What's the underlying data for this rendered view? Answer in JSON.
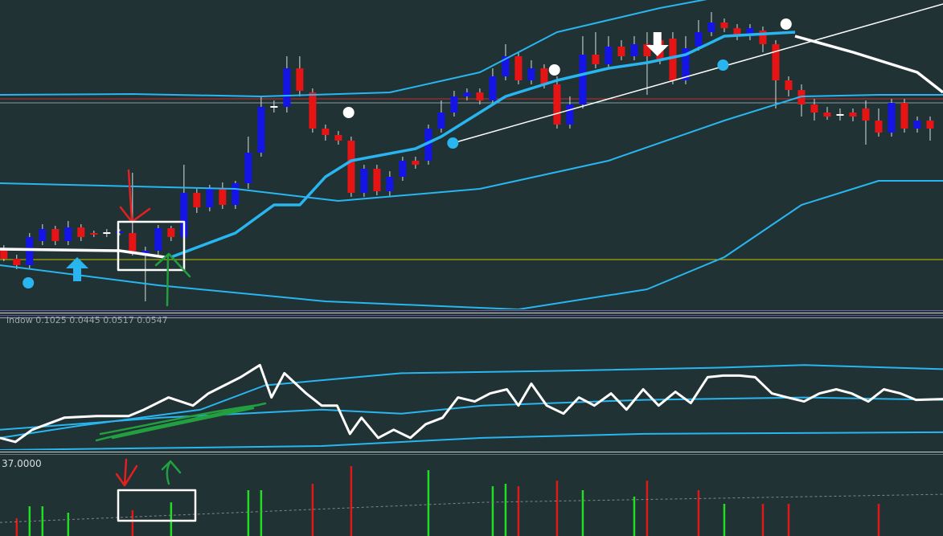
{
  "chart_data": [
    {
      "type": "candlestick",
      "xlim": [
        -0.3,
        73
      ],
      "ylim": [
        0,
        385
      ],
      "up_color": "#1414e6",
      "down_color": "#e61414",
      "doji_color": "#ffffff",
      "open": [
        75,
        63,
        55,
        85,
        100,
        85,
        102,
        95,
        95,
        95,
        95,
        67,
        73,
        101,
        90,
        145,
        127,
        150,
        130,
        157,
        195,
        252,
        252,
        300,
        270,
        225,
        217,
        210,
        145,
        175,
        147,
        165,
        185,
        185,
        225,
        245,
        265,
        270,
        260,
        290,
        315,
        285,
        300,
        280,
        230,
        255,
        317,
        305,
        327,
        315,
        330,
        335,
        337,
        285,
        327,
        345,
        357,
        350,
        340,
        347,
        330,
        285,
        273,
        255,
        245,
        242,
        245,
        250,
        235,
        220,
        257,
        225,
        235
      ],
      "high": [
        80,
        68,
        95,
        106,
        104,
        110,
        106,
        98,
        100,
        100,
        170,
        78,
        105,
        104,
        180,
        150,
        155,
        158,
        160,
        215,
        265,
        260,
        315,
        315,
        275,
        230,
        222,
        215,
        180,
        180,
        172,
        190,
        190,
        230,
        260,
        272,
        275,
        275,
        300,
        330,
        320,
        310,
        305,
        290,
        265,
        340,
        345,
        340,
        335,
        340,
        345,
        340,
        345,
        340,
        360,
        370,
        362,
        355,
        355,
        352,
        335,
        290,
        280,
        262,
        252,
        250,
        250,
        260,
        250,
        262,
        262,
        240,
        240
      ],
      "low": [
        60,
        50,
        50,
        80,
        80,
        80,
        85,
        90,
        90,
        92,
        67,
        10,
        68,
        85,
        87,
        120,
        122,
        125,
        125,
        150,
        190,
        245,
        245,
        265,
        220,
        210,
        205,
        140,
        140,
        142,
        140,
        160,
        175,
        180,
        220,
        240,
        260,
        255,
        255,
        285,
        280,
        280,
        275,
        225,
        225,
        250,
        300,
        300,
        310,
        310,
        267,
        305,
        280,
        280,
        322,
        340,
        345,
        335,
        335,
        320,
        250,
        265,
        240,
        235,
        236,
        235,
        234,
        205,
        215,
        215,
        220,
        220,
        210
      ],
      "close": [
        63,
        55,
        90,
        100,
        85,
        102,
        90,
        93,
        95,
        97,
        69,
        73,
        101,
        90,
        145,
        127,
        150,
        130,
        157,
        195,
        252,
        252,
        300,
        272,
        225,
        217,
        210,
        145,
        175,
        147,
        165,
        185,
        180,
        225,
        245,
        265,
        270,
        260,
        290,
        315,
        285,
        300,
        280,
        230,
        255,
        317,
        305,
        327,
        315,
        330,
        315,
        310,
        285,
        325,
        345,
        357,
        350,
        340,
        350,
        330,
        285,
        273,
        255,
        245,
        240,
        242,
        240,
        235,
        220,
        257,
        225,
        235,
        225
      ],
      "hlines": [
        {
          "value": 62,
          "color": "#c8c000"
        },
        {
          "value": 262,
          "color": "#c03030"
        },
        {
          "value": 257,
          "color": "#8a9aa0"
        }
      ],
      "series": [
        {
          "color": "#29b6f0",
          "width": 2,
          "x": [
            -0.3,
            10,
            20,
            30,
            37,
            43,
            51,
            56
          ],
          "values": [
            267,
            268,
            265,
            270,
            295,
            345,
            375,
            390
          ]
        },
        {
          "color": "#29b6f0",
          "width": 2,
          "x": [
            -0.3,
            18,
            26,
            37,
            47,
            56,
            62,
            68,
            73
          ],
          "values": [
            157,
            150,
            135,
            150,
            185,
            235,
            265,
            267,
            267
          ]
        },
        {
          "color": "#29b6f0",
          "width": 2,
          "x": [
            -0.3,
            12,
            25,
            40,
            50,
            56,
            62,
            68,
            73
          ],
          "values": [
            55,
            30,
            10,
            0,
            25,
            65,
            130,
            160,
            160
          ]
        },
        {
          "color": "#29b6f0",
          "width": 3.5,
          "x": [
            13,
            18,
            21,
            23,
            25,
            27,
            32,
            34,
            36,
            39,
            43,
            47,
            50,
            53,
            56,
            61.5
          ],
          "values": [
            65,
            95,
            130,
            130,
            165,
            185,
            200,
            215,
            235,
            265,
            285,
            300,
            307,
            317,
            340,
            345
          ]
        },
        {
          "color": "#ffffff",
          "width": 3.5,
          "x": [
            -0.3,
            9,
            12.5,
            30,
            61.5,
            66,
            71,
            73
          ],
          "values": [
            75,
            73,
            65,
            null,
            340,
            320,
            295,
            270
          ]
        },
        {
          "color": "#ffffff",
          "width": 1.5,
          "x": [
            34.9,
            73
          ],
          "values": [
            207,
            380
          ]
        }
      ],
      "dots": [
        {
          "x": 26.8,
          "value": 245,
          "color": "#ffffff"
        },
        {
          "x": 42.8,
          "value": 298,
          "color": "#ffffff"
        },
        {
          "x": 60.8,
          "value": 355,
          "color": "#ffffff"
        },
        {
          "x": 1.9,
          "value": 33,
          "color": "#29b6f0"
        },
        {
          "x": 34.9,
          "value": 207,
          "color": "#29b6f0"
        },
        {
          "x": 55.9,
          "value": 304,
          "color": "#29b6f0"
        }
      ],
      "arrows": [
        {
          "x": 5.7,
          "value": 65,
          "color": "#29b6f0",
          "direction": "up"
        },
        {
          "x": 50.8,
          "value": 315,
          "color": "#ffffff",
          "direction": "down"
        }
      ]
    },
    {
      "type": "line",
      "title": "indow 0.1025 0.0445 0.0517 0.0547",
      "xlim": [
        -0.3,
        73
      ],
      "ylim": [
        0,
        160
      ],
      "series": [
        {
          "color": "#29b6f0",
          "width": 2,
          "x": [
            -0.3,
            5.9,
            15.3,
            20.3,
            30.9,
            43.4,
            55.9,
            62.2,
            73
          ],
          "values": [
            15,
            30,
            50,
            80,
            95,
            98,
            102,
            105,
            100
          ]
        },
        {
          "color": "#29b6f0",
          "width": 2,
          "x": [
            -0.3,
            12.2,
            24.7,
            30.9,
            37.2,
            49.7,
            62.2,
            73
          ],
          "values": [
            25,
            40,
            50,
            45,
            55,
            62,
            65,
            62
          ]
        },
        {
          "color": "#29b6f0",
          "width": 2,
          "x": [
            -0.3,
            24.7,
            37.2,
            49.7,
            73
          ],
          "values": [
            0,
            5,
            15,
            20,
            22
          ]
        },
        {
          "color": "#ffffff",
          "width": 3,
          "x": [
            -0.3,
            0.9,
            2.2,
            4.7,
            7.2,
            9.7,
            10.9,
            12.8,
            14.7,
            15.9,
            18.4,
            19.9,
            20.8,
            21.8,
            23.5,
            24.7,
            25.9,
            26.9,
            27.8,
            29.1,
            30.3,
            31.6,
            32.8,
            34.1,
            35.3,
            36.6,
            37.8,
            39.1,
            40.0,
            41.0,
            42.2,
            43.5,
            44.7,
            45.9,
            47.2,
            48.4,
            49.7,
            50.9,
            52.2,
            53.4,
            54.7,
            55.9,
            57.2,
            58.4,
            59.7,
            60.9,
            62.2,
            63.4,
            64.7,
            65.9,
            67.2,
            68.4,
            69.7,
            70.9,
            73.0
          ],
          "values": [
            15,
            10,
            25,
            40,
            42,
            42,
            50,
            65,
            55,
            70,
            90,
            105,
            65,
            95,
            70,
            55,
            55,
            20,
            40,
            15,
            25,
            15,
            32,
            40,
            65,
            60,
            70,
            75,
            55,
            82,
            55,
            45,
            65,
            55,
            70,
            50,
            75,
            55,
            72,
            58,
            90,
            92,
            92,
            90,
            70,
            65,
            60,
            70,
            75,
            70,
            60,
            75,
            70,
            62,
            63
          ]
        }
      ]
    },
    {
      "type": "bar",
      "xlim": [
        -0.3,
        73
      ],
      "ylim": [
        0,
        37
      ],
      "yticks": [
        {
          "value": 37,
          "label": "37.0000"
        }
      ],
      "x": [
        1,
        2,
        3,
        5,
        10,
        13,
        19,
        20,
        24,
        27,
        33,
        38,
        39,
        40,
        43,
        45,
        49,
        50,
        54,
        56,
        59,
        61,
        68
      ],
      "values": [
        8.6,
        14.4,
        14.4,
        11.3,
        12.5,
        16.3,
        22.2,
        22.2,
        25.3,
        33.9,
        31.9,
        24.1,
        25.3,
        24.1,
        26.8,
        22.2,
        19.1,
        26.8,
        22.2,
        15.6,
        15.6,
        15.6,
        15.6
      ],
      "colors": [
        "#e01818",
        "#22dd22",
        "#22dd22",
        "#22dd22",
        "#e01818",
        "#22dd22",
        "#22dd22",
        "#22dd22",
        "#e01818",
        "#e01818",
        "#22dd22",
        "#22dd22",
        "#22dd22",
        "#e01818",
        "#e01818",
        "#22dd22",
        "#22dd22",
        "#e01818",
        "#e01818",
        "#22dd22",
        "#e01818",
        "#e01818",
        "#e01818"
      ],
      "series": [
        {
          "color": "#7d8a8a",
          "width": 1,
          "dash": true,
          "x": [
            -0.3,
            37.2,
            73
          ],
          "values": [
            6.6,
            16.3,
            20.2
          ]
        }
      ]
    }
  ]
}
